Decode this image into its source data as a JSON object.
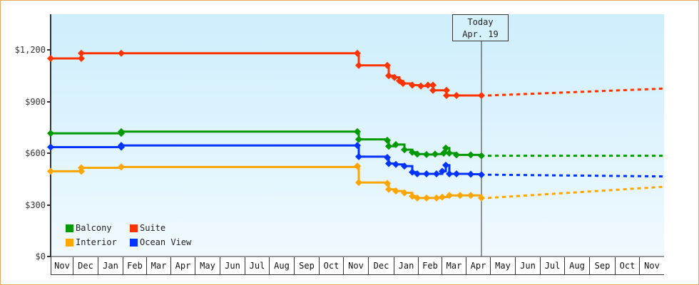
{
  "chart_data": {
    "type": "line",
    "title": "",
    "xlabel": "",
    "ylabel": "",
    "ylim": [
      0,
      1400
    ],
    "y_ticks": [
      "$0",
      "$300",
      "$600",
      "$900",
      "$1,200"
    ],
    "y_tick_values": [
      0,
      300,
      600,
      900,
      1200
    ],
    "x_tick_labels": [
      "Nov",
      "Dec",
      "Jan",
      "Feb",
      "Mar",
      "Apr",
      "May",
      "Jun",
      "Jul",
      "Aug",
      "Sep",
      "Oct",
      "Nov",
      "Dec",
      "Jan",
      "Feb",
      "Mar",
      "Apr",
      "May",
      "Jun",
      "Jul",
      "Aug",
      "Sep",
      "Oct",
      "Nov"
    ],
    "grid": false,
    "legend_position": "lower-left",
    "annotation": {
      "line1": "Today",
      "line2": "Apr. 19"
    },
    "series": [
      {
        "name": "Balcony",
        "color": "#009900",
        "historical": [
          [
            "Nov",
            715
          ],
          [
            "Feb",
            720
          ],
          [
            "Feb",
            725
          ],
          [
            "Nov",
            725
          ],
          [
            "Nov",
            680
          ],
          [
            "Dec",
            675
          ],
          [
            "Dec",
            640
          ],
          [
            "Jan",
            650
          ],
          [
            "Jan",
            620
          ],
          [
            "Feb",
            600
          ],
          [
            "Feb",
            590
          ],
          [
            "Mar",
            595
          ],
          [
            "Mar",
            630
          ],
          [
            "Mar",
            600
          ],
          [
            "Apr",
            590
          ],
          [
            "Apr",
            585
          ]
        ],
        "forecast_end": 585
      },
      {
        "name": "Suite",
        "color": "#ff3300",
        "historical": [
          [
            "Nov",
            1150
          ],
          [
            "Dec",
            1150
          ],
          [
            "Dec",
            1180
          ],
          [
            "Feb",
            1180
          ],
          [
            "Nov",
            1180
          ],
          [
            "Nov",
            1110
          ],
          [
            "Dec",
            1110
          ],
          [
            "Dec",
            1050
          ],
          [
            "Jan",
            1040
          ],
          [
            "Jan",
            1000
          ],
          [
            "Feb",
            990
          ],
          [
            "Feb",
            990
          ],
          [
            "Mar",
            965
          ],
          [
            "Mar",
            940
          ],
          [
            "Apr",
            935
          ],
          [
            "Apr",
            935
          ]
        ],
        "forecast_end": 975
      },
      {
        "name": "Interior",
        "color": "#ffa500",
        "historical": [
          [
            "Nov",
            495
          ],
          [
            "Dec",
            495
          ],
          [
            "Dec",
            510
          ],
          [
            "Feb",
            520
          ],
          [
            "Nov",
            525
          ],
          [
            "Nov",
            430
          ],
          [
            "Dec",
            425
          ],
          [
            "Dec",
            390
          ],
          [
            "Jan",
            380
          ],
          [
            "Jan",
            370
          ],
          [
            "Feb",
            340
          ],
          [
            "Feb",
            335
          ],
          [
            "Mar",
            350
          ],
          [
            "Mar",
            360
          ],
          [
            "Apr",
            355
          ],
          [
            "Apr",
            340
          ]
        ],
        "forecast_end": 405
      },
      {
        "name": "Ocean View",
        "color": "#0033ff",
        "historical": [
          [
            "Nov",
            635
          ],
          [
            "Feb",
            640
          ],
          [
            "Feb",
            645
          ],
          [
            "Nov",
            645
          ],
          [
            "Nov",
            580
          ],
          [
            "Dec",
            575
          ],
          [
            "Dec",
            540
          ],
          [
            "Jan",
            530
          ],
          [
            "Jan",
            520
          ],
          [
            "Feb",
            480
          ],
          [
            "Feb",
            475
          ],
          [
            "Mar",
            480
          ],
          [
            "Mar",
            530
          ],
          [
            "Mar",
            480
          ],
          [
            "Apr",
            478
          ],
          [
            "Apr",
            475
          ]
        ],
        "forecast_end": 465
      }
    ]
  },
  "legend": {
    "items": [
      {
        "label": "Balcony",
        "color": "#009900"
      },
      {
        "label": "Suite",
        "color": "#ff3300"
      },
      {
        "label": "Interior",
        "color": "#ffa500"
      },
      {
        "label": "Ocean View",
        "color": "#0033ff"
      }
    ]
  },
  "today": {
    "line1": "Today",
    "line2": "Apr. 19"
  },
  "y_axis": {
    "labels": [
      "$1,200",
      "$900",
      "$600",
      "$300",
      "$0"
    ]
  },
  "x_axis": {
    "labels": [
      "Nov",
      "Dec",
      "Jan",
      "Feb",
      "Mar",
      "Apr",
      "May",
      "Jun",
      "Jul",
      "Aug",
      "Sep",
      "Oct",
      "Nov",
      "Dec",
      "Jan",
      "Feb",
      "Mar",
      "Apr",
      "May",
      "Jun",
      "Jul",
      "Aug",
      "Sep",
      "Oct",
      "Nov"
    ]
  }
}
